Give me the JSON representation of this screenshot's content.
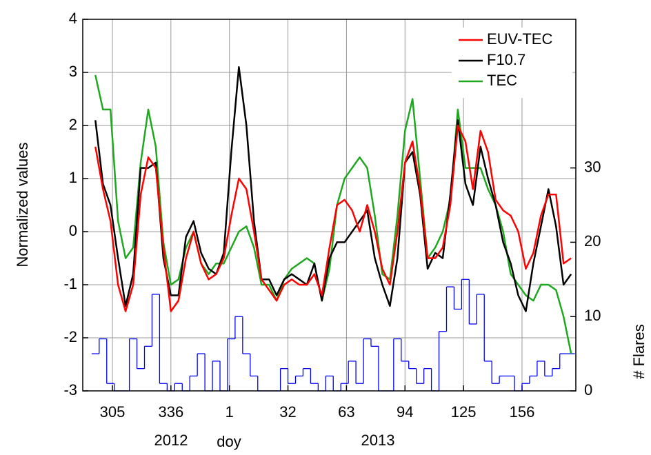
{
  "chart_data": {
    "type": "line",
    "y_label": "Normalized values",
    "y2_label": "# Flares",
    "annotations": [
      "2012",
      "doy",
      "2013"
    ],
    "x": [
      296,
      300,
      304,
      308,
      312,
      316,
      320,
      324,
      328,
      332,
      336,
      340,
      344,
      348,
      352,
      356,
      360,
      364,
      368,
      372,
      376,
      380,
      384,
      388,
      392,
      396,
      400,
      404,
      408,
      412,
      416,
      420,
      424,
      428,
      432,
      436,
      440,
      444,
      448,
      452,
      456,
      460,
      464,
      468,
      472,
      476,
      480,
      484,
      488,
      492,
      496,
      500,
      504,
      508,
      512,
      516,
      520,
      524,
      528,
      532,
      536,
      540,
      544,
      548
    ],
    "xlim": [
      289.3,
      550.5
    ],
    "xticks": [
      {
        "value": 305,
        "label": "305"
      },
      {
        "value": 336,
        "label": "336"
      },
      {
        "value": 367,
        "label": "1"
      },
      {
        "value": 398,
        "label": "32"
      },
      {
        "value": 429,
        "label": "63"
      },
      {
        "value": 460,
        "label": "94"
      },
      {
        "value": 491,
        "label": "125"
      },
      {
        "value": 522,
        "label": "156"
      }
    ],
    "ylim": [
      -3,
      4
    ],
    "yticks": [
      -3,
      -2,
      -1,
      0,
      1,
      2,
      3,
      4
    ],
    "y2lim": [
      0,
      50
    ],
    "y2ticks": [
      0,
      10,
      20,
      30
    ],
    "grid": true,
    "legend": "top-right",
    "series": [
      {
        "name": "EUV-TEC",
        "color": "#ff0000",
        "values": [
          1.6,
          0.8,
          0.2,
          -1.0,
          -1.5,
          -1.0,
          0.7,
          1.4,
          1.2,
          -0.3,
          -1.5,
          -1.3,
          -0.5,
          0.0,
          -0.6,
          -0.9,
          -0.8,
          -0.5,
          0.3,
          1.0,
          0.8,
          0.0,
          -0.9,
          -1.1,
          -1.3,
          -1.0,
          -0.9,
          -1.0,
          -1.0,
          -0.8,
          -1.2,
          -0.3,
          0.5,
          0.6,
          0.4,
          0.0,
          0.5,
          0.0,
          -0.7,
          -1.0,
          0.0,
          1.3,
          1.7,
          0.8,
          -0.5,
          -0.5,
          -0.3,
          0.5,
          2.0,
          1.7,
          0.8,
          1.9,
          1.5,
          0.6,
          0.4,
          0.3,
          0.0,
          -0.7,
          -0.4,
          0.3,
          0.7,
          0.7,
          -0.6,
          -0.5
        ]
      },
      {
        "name": "F10.7",
        "color": "#000000",
        "values": [
          2.1,
          0.9,
          0.5,
          -0.5,
          -1.4,
          -0.8,
          1.2,
          1.2,
          1.3,
          -0.5,
          -1.2,
          -1.2,
          -0.1,
          0.2,
          -0.4,
          -0.7,
          -0.8,
          -0.4,
          1.5,
          3.1,
          2.0,
          0.2,
          -0.9,
          -0.9,
          -1.2,
          -0.9,
          -0.8,
          -0.9,
          -1.0,
          -0.6,
          -1.3,
          -0.5,
          -0.2,
          -0.2,
          0.0,
          0.2,
          0.4,
          -0.5,
          -1.0,
          -1.4,
          -0.5,
          1.3,
          1.5,
          0.7,
          -0.7,
          -0.4,
          -0.5,
          0.7,
          2.1,
          0.9,
          0.5,
          1.6,
          1.0,
          0.5,
          -0.2,
          -0.6,
          -1.2,
          -1.5,
          -0.6,
          0.1,
          0.8,
          0.1,
          -1.0,
          -0.8
        ]
      },
      {
        "name": "TEC",
        "color": "#1fa81f",
        "values": [
          2.95,
          2.3,
          2.3,
          0.2,
          -0.5,
          -0.3,
          1.3,
          2.3,
          1.6,
          -0.2,
          -1.0,
          -0.9,
          -0.3,
          0.0,
          -0.6,
          -0.8,
          -0.6,
          -0.6,
          -0.3,
          0.0,
          0.1,
          -0.3,
          -1.0,
          -1.0,
          -1.3,
          -0.9,
          -0.7,
          -0.6,
          -0.5,
          -0.6,
          -1.3,
          -0.7,
          0.5,
          1.0,
          1.2,
          1.4,
          1.2,
          0.3,
          -0.8,
          -0.9,
          0.3,
          1.9,
          2.5,
          1.0,
          -0.5,
          -0.3,
          0.0,
          0.6,
          2.3,
          1.2,
          1.2,
          1.2,
          0.8,
          0.5,
          0.0,
          -0.8,
          -1.0,
          -1.2,
          -1.3,
          -1.0,
          -1.0,
          -1.1,
          -1.6,
          -2.3
        ]
      },
      {
        "name": "# Flares",
        "color": "#0000ff",
        "axis": "y2",
        "drawstyle": "steps-mid",
        "values": [
          5,
          7,
          1,
          0,
          0,
          7,
          3,
          6,
          13,
          1,
          0,
          1,
          0,
          2,
          5,
          0,
          4,
          0,
          7,
          10,
          5,
          2,
          0,
          0,
          0,
          3,
          1,
          2,
          3,
          1,
          0,
          2,
          0,
          1,
          4,
          1,
          7,
          6,
          0,
          0,
          7,
          4,
          3,
          1,
          3,
          0,
          8,
          14,
          11,
          15,
          9,
          13,
          4,
          1,
          2,
          2,
          0,
          1,
          2,
          4,
          2,
          3,
          5,
          5
        ]
      }
    ]
  }
}
